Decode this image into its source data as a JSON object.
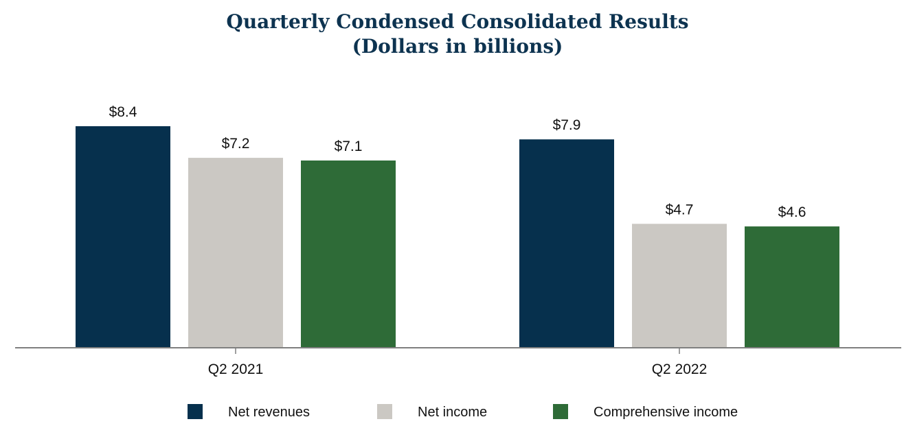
{
  "chart_data": {
    "type": "bar",
    "title": "Quarterly Condensed Consolidated Results",
    "subtitle": "(Dollars in billions)",
    "categories": [
      "Q2 2021",
      "Q2 2022"
    ],
    "series": [
      {
        "name": "Net revenues",
        "values": [
          8.4,
          7.9
        ],
        "labels": [
          "$8.4",
          "$7.9"
        ],
        "color": "#06304d"
      },
      {
        "name": "Net income",
        "values": [
          7.2,
          4.7
        ],
        "labels": [
          "$7.2",
          "$4.7"
        ],
        "color": "#cbc8c3"
      },
      {
        "name": "Comprehensive income",
        "values": [
          7.1,
          4.6
        ],
        "labels": [
          "$7.1",
          "$4.6"
        ],
        "color": "#2e6b37"
      }
    ],
    "xlabel": "",
    "ylabel": "",
    "ylim": [
      0,
      9
    ],
    "grid": false,
    "legend_position": "bottom-center"
  },
  "colors": {
    "title": "#0d3350",
    "axis": "#7f7f7f"
  }
}
